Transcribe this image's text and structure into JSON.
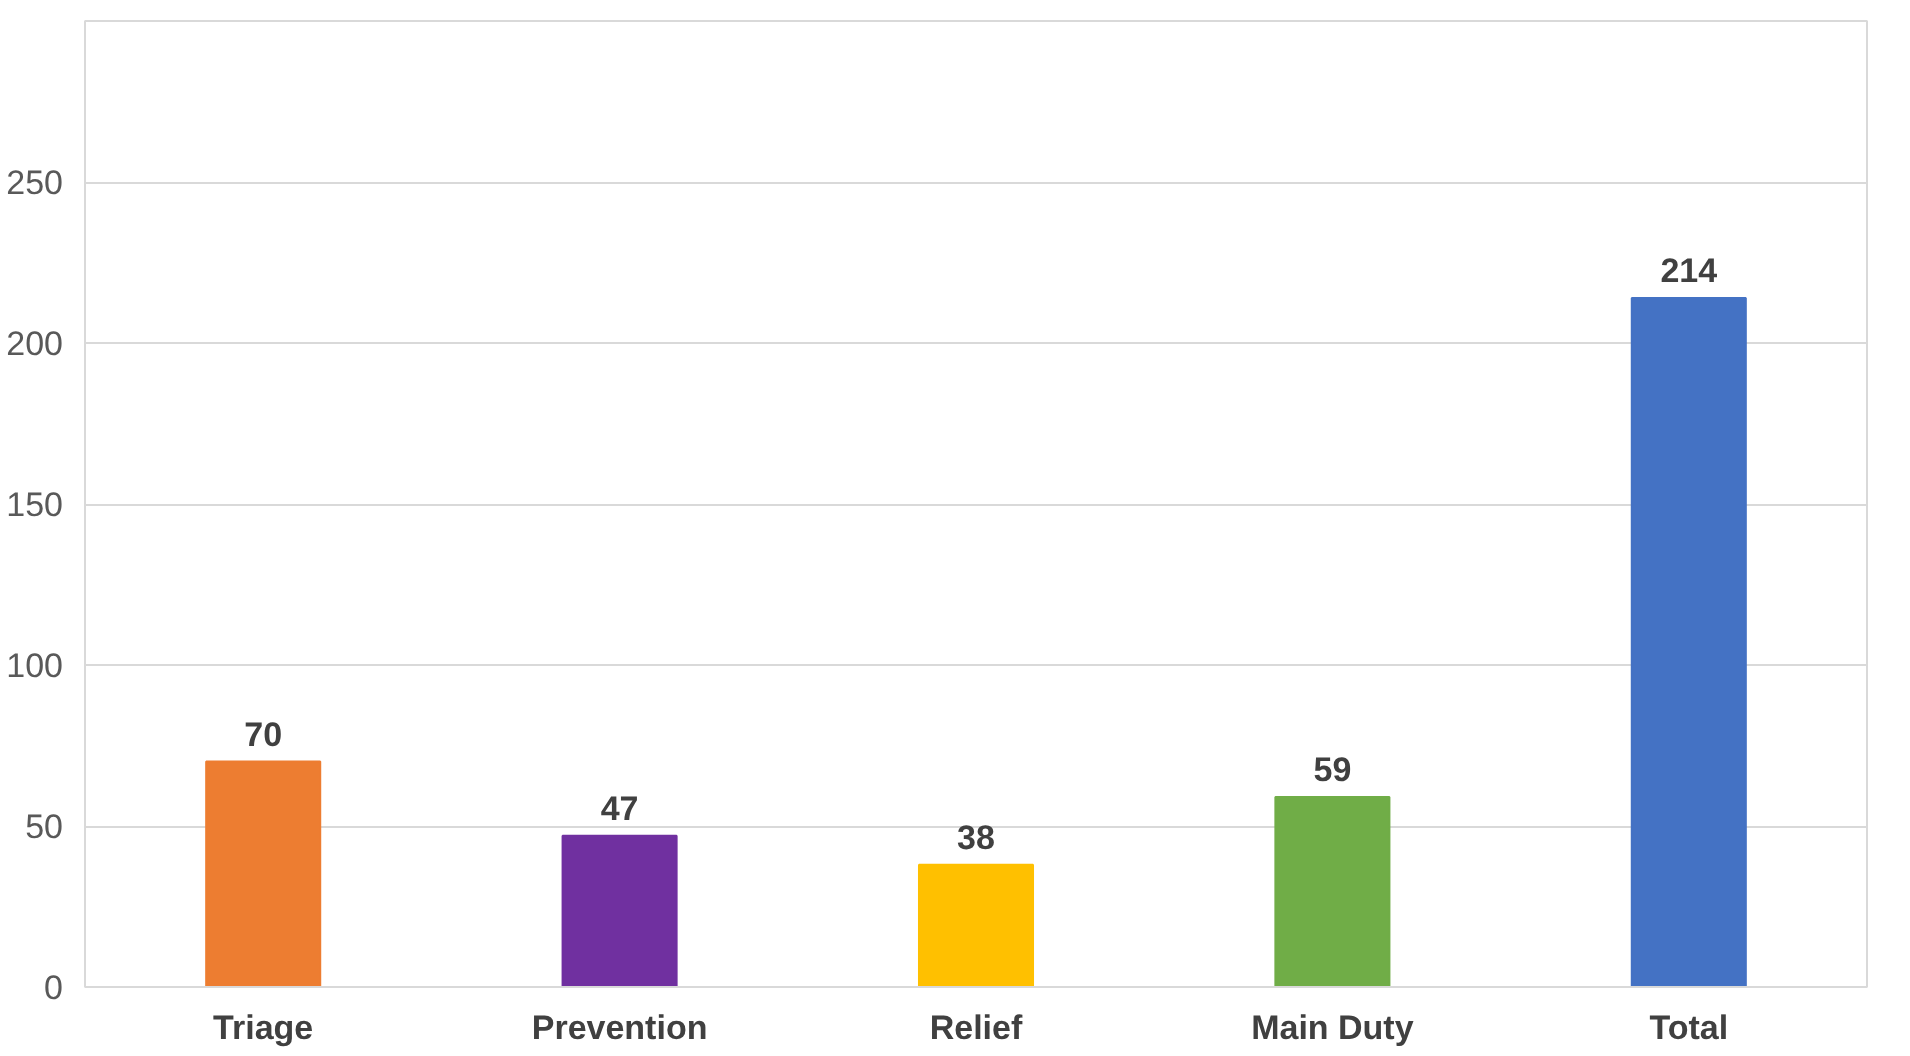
{
  "chart_data": {
    "type": "bar",
    "categories": [
      "Triage",
      "Prevention",
      "Relief",
      "Main Duty",
      "Total"
    ],
    "values": [
      70,
      47,
      38,
      59,
      214
    ],
    "colors": [
      "#ed7d31",
      "#7030a0",
      "#ffc000",
      "#70ad47",
      "#4472c4"
    ],
    "ylim": [
      0,
      300
    ],
    "yticks": [
      0,
      50,
      100,
      150,
      200,
      250
    ],
    "grid": "y",
    "data_labels": true
  }
}
